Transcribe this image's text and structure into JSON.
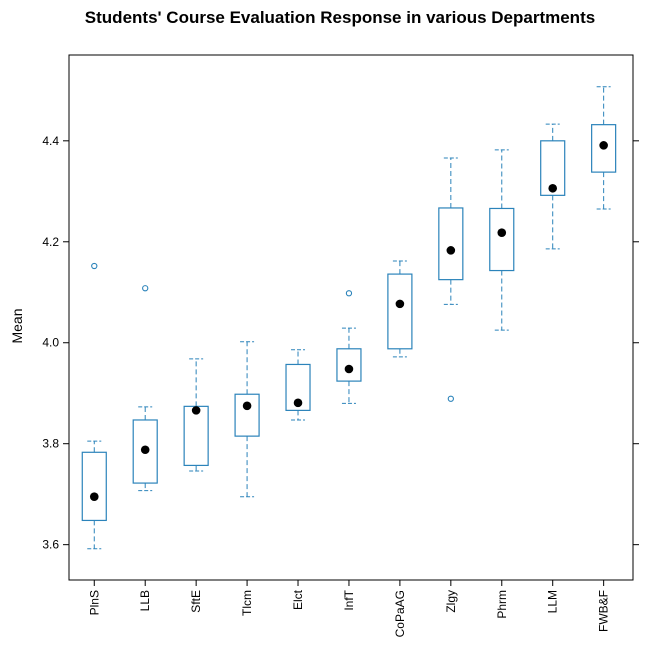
{
  "chart_data": {
    "type": "box",
    "title": "Students' Course Evaluation Response in various Departments",
    "xlabel": "",
    "ylabel": "Mean",
    "ylim": [
      3.53,
      4.57
    ],
    "yticks": [
      3.6,
      3.8,
      4.0,
      4.2,
      4.4
    ],
    "ytick_labels": [
      "3.6",
      "3.8",
      "4.0",
      "4.2",
      "4.4"
    ],
    "grid": false,
    "colors": {
      "box": "#2b83ba",
      "median": "#000000",
      "frame": "#000000"
    },
    "categories": [
      "PlnS",
      "LLB",
      "SftE",
      "Tlcm",
      "Elct",
      "InfT",
      "CoPaAG",
      "Zlgy",
      "Phrm",
      "LLM",
      "FWB&F"
    ],
    "boxes": [
      {
        "category": "PlnS",
        "whisker_low": 3.592,
        "q1": 3.648,
        "median": 3.695,
        "q3": 3.783,
        "whisker_high": 3.805,
        "outliers": [
          4.152
        ]
      },
      {
        "category": "LLB",
        "whisker_low": 3.707,
        "q1": 3.722,
        "median": 3.788,
        "q3": 3.847,
        "whisker_high": 3.873,
        "outliers": [
          4.108
        ]
      },
      {
        "category": "SftE",
        "whisker_low": 3.746,
        "q1": 3.757,
        "median": 3.866,
        "q3": 3.874,
        "whisker_high": 3.968,
        "outliers": []
      },
      {
        "category": "Tlcm",
        "whisker_low": 3.695,
        "q1": 3.815,
        "median": 3.875,
        "q3": 3.898,
        "whisker_high": 4.002,
        "outliers": []
      },
      {
        "category": "Elct",
        "whisker_low": 3.847,
        "q1": 3.866,
        "median": 3.881,
        "q3": 3.957,
        "whisker_high": 3.986,
        "outliers": []
      },
      {
        "category": "InfT",
        "whisker_low": 3.88,
        "q1": 3.924,
        "median": 3.948,
        "q3": 3.988,
        "whisker_high": 4.029,
        "outliers": [
          4.098
        ]
      },
      {
        "category": "CoPaAG",
        "whisker_low": 3.972,
        "q1": 3.988,
        "median": 4.077,
        "q3": 4.136,
        "whisker_high": 4.162,
        "outliers": []
      },
      {
        "category": "Zlgy",
        "whisker_low": 4.076,
        "q1": 4.125,
        "median": 4.183,
        "q3": 4.267,
        "whisker_high": 4.366,
        "outliers": [
          3.889
        ]
      },
      {
        "category": "Phrm",
        "whisker_low": 4.025,
        "q1": 4.143,
        "median": 4.218,
        "q3": 4.266,
        "whisker_high": 4.382,
        "outliers": []
      },
      {
        "category": "LLM",
        "whisker_low": 4.186,
        "q1": 4.292,
        "median": 4.306,
        "q3": 4.4,
        "whisker_high": 4.433,
        "outliers": []
      },
      {
        "category": "FWB&F",
        "whisker_low": 4.265,
        "q1": 4.338,
        "median": 4.391,
        "q3": 4.432,
        "whisker_high": 4.507,
        "outliers": []
      }
    ]
  }
}
